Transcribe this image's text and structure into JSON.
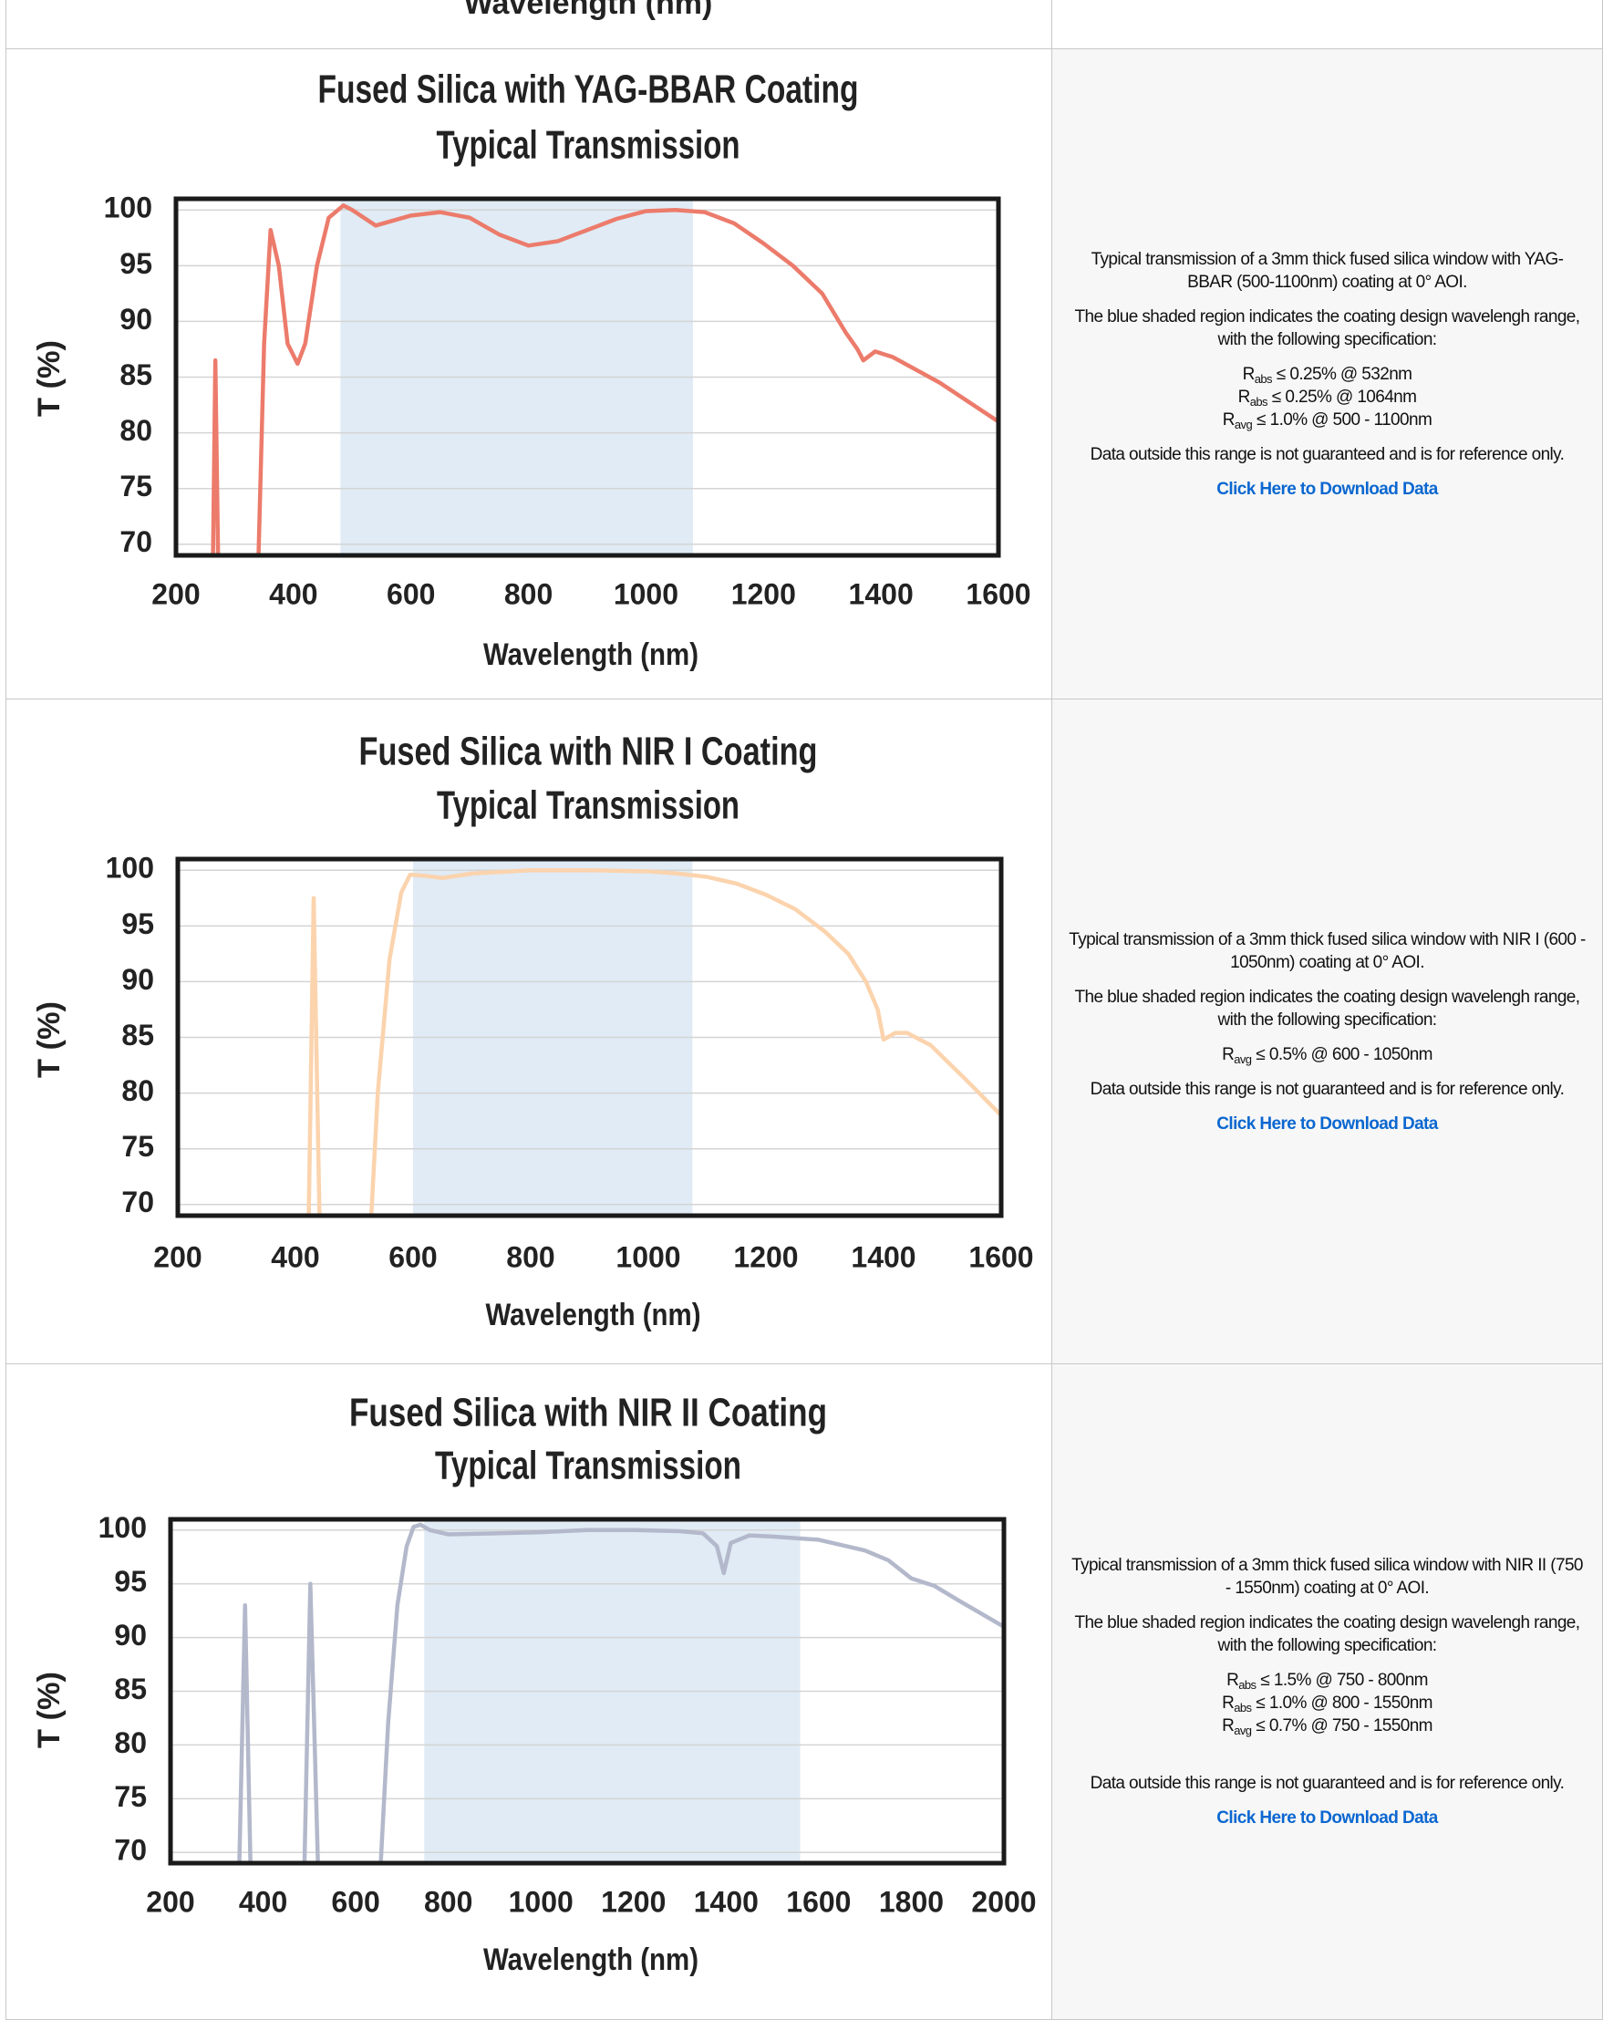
{
  "top_fragment": "Wavelength (nm)",
  "chart_data": [
    {
      "type": "line",
      "title": [
        "Fused Silica with YAG-BBAR Coating",
        "Typical Transmission"
      ],
      "xlabel": "Wavelength (nm)",
      "ylabel": "T (%)",
      "xlim": [
        200,
        1600
      ],
      "xticks": [
        200,
        400,
        600,
        800,
        1000,
        1200,
        1400,
        1600
      ],
      "ylim": [
        69,
        101
      ],
      "yticks": [
        70,
        75,
        80,
        85,
        90,
        95,
        100
      ],
      "grid": true,
      "shade": [
        480,
        1080
      ],
      "shade_color": "#e0ebf5",
      "color": "#ec7b6b",
      "x": [
        261,
        267,
        274,
        336,
        350,
        361,
        375,
        390,
        407,
        420,
        440,
        460,
        485,
        500,
        540,
        600,
        650,
        700,
        750,
        800,
        850,
        900,
        950,
        1000,
        1050,
        1100,
        1150,
        1200,
        1250,
        1300,
        1340,
        1360,
        1370,
        1390,
        1420,
        1500,
        1600
      ],
      "values": [
        60,
        86.5,
        60,
        60,
        88,
        98.2,
        95,
        88,
        86.2,
        88,
        95,
        99.3,
        100.4,
        100,
        98.6,
        99.5,
        99.8,
        99.3,
        97.8,
        96.8,
        97.2,
        98.2,
        99.2,
        99.9,
        100,
        99.8,
        98.8,
        97,
        95,
        92.5,
        89,
        87.5,
        86.5,
        87.3,
        86.8,
        84.5,
        81
      ]
    },
    {
      "type": "line",
      "title": [
        "Fused Silica with NIR I Coating",
        "Typical Transmission"
      ],
      "xlabel": "Wavelength (nm)",
      "ylabel": "T (%)",
      "xlim": [
        200,
        1600
      ],
      "xticks": [
        200,
        400,
        600,
        800,
        1000,
        1200,
        1400,
        1600
      ],
      "ylim": [
        69,
        101
      ],
      "yticks": [
        70,
        75,
        80,
        85,
        90,
        95,
        100
      ],
      "grid": true,
      "shade": [
        600,
        1075
      ],
      "shade_color": "#e0ebf5",
      "color": "#fbd3ad",
      "x": [
        420,
        431,
        444,
        520,
        540,
        560,
        580,
        595,
        620,
        650,
        700,
        800,
        900,
        1000,
        1050,
        1100,
        1150,
        1200,
        1250,
        1300,
        1340,
        1370,
        1390,
        1400,
        1420,
        1440,
        1480,
        1540,
        1600
      ],
      "values": [
        60,
        97.5,
        60,
        60,
        80,
        92,
        98,
        99.6,
        99.5,
        99.3,
        99.7,
        100,
        100,
        99.9,
        99.7,
        99.4,
        98.8,
        97.8,
        96.5,
        94.5,
        92.5,
        90,
        87.5,
        84.8,
        85.4,
        85.4,
        84.3,
        81.2,
        78
      ]
    },
    {
      "type": "line",
      "title": [
        "Fused Silica with NIR II Coating",
        "Typical Transmission"
      ],
      "xlabel": "Wavelength (nm)",
      "ylabel": "T (%)",
      "xlim": [
        200,
        2000
      ],
      "xticks": [
        200,
        400,
        600,
        800,
        1000,
        1200,
        1400,
        1600,
        1800,
        2000
      ],
      "ylim": [
        69,
        101
      ],
      "yticks": [
        70,
        75,
        80,
        85,
        90,
        95,
        100
      ],
      "grid": true,
      "shade": [
        748,
        1560
      ],
      "shade_color": "#e0ebf5",
      "color": "#b3b8cb",
      "x": [
        344,
        361,
        377,
        485,
        502,
        524,
        643,
        670,
        690,
        710,
        725,
        740,
        760,
        800,
        900,
        1000,
        1100,
        1200,
        1300,
        1350,
        1380,
        1395,
        1410,
        1450,
        1500,
        1600,
        1700,
        1750,
        1800,
        1850,
        1900,
        2000
      ],
      "values": [
        60,
        93,
        60,
        60,
        95,
        60,
        60,
        82,
        93,
        98.5,
        100.3,
        100.5,
        100,
        99.6,
        99.7,
        99.8,
        100,
        100,
        99.9,
        99.7,
        98.5,
        96,
        98.8,
        99.5,
        99.4,
        99.1,
        98.1,
        97.2,
        95.5,
        94.8,
        93.5,
        91
      ]
    }
  ],
  "rows": [
    {
      "paragraphs": [
        "Typical transmission of a 3mm thick fused silica window with YAG-BBAR (500-1100nm) coating at 0° AOI.",
        "The blue shaded region indicates the coating design wavelengh range, with the following specification:"
      ],
      "specs": [
        {
          "symbol": "R",
          "sub": "abs",
          "text": "≤ 0.25% @ 532nm"
        },
        {
          "symbol": "R",
          "sub": "abs",
          "text": "≤ 0.25% @ 1064nm"
        },
        {
          "symbol": "R",
          "sub": "avg",
          "text": "≤ 1.0% @ 500 - 1100nm"
        }
      ],
      "note": "Data outside this range is not guaranteed and is for reference only.",
      "link": "Click Here to Download Data"
    },
    {
      "paragraphs": [
        "Typical transmission of a 3mm thick fused silica window with NIR I (600 - 1050nm) coating at 0° AOI.",
        "The blue shaded region indicates the coating design wavelengh range, with the following specification:"
      ],
      "specs": [
        {
          "symbol": "R",
          "sub": "avg",
          "text": "≤ 0.5% @ 600 - 1050nm"
        }
      ],
      "note": "Data outside this range is not guaranteed and is for reference only.",
      "link": "Click Here to Download Data"
    },
    {
      "paragraphs": [
        "Typical transmission of a 3mm thick fused silica window with NIR II (750 - 1550nm) coating at 0° AOI.",
        "The blue shaded region indicates the coating design wavelengh range, with the following specification:"
      ],
      "specs": [
        {
          "symbol": "R",
          "sub": "abs",
          "text": "≤ 1.5% @ 750 - 800nm"
        },
        {
          "symbol": "R",
          "sub": "abs",
          "text": "≤ 1.0% @ 800 - 1550nm"
        },
        {
          "symbol": "R",
          "sub": "avg",
          "text": "≤ 0.7% @ 750 - 1550nm"
        }
      ],
      "note": "Data outside this range is not guaranteed and is for reference only.",
      "link": "Click Here to Download Data"
    }
  ]
}
